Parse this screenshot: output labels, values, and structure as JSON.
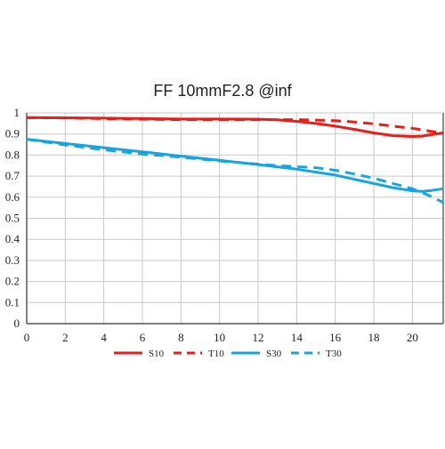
{
  "chart_data": {
    "type": "line",
    "title": "FF 10mmF2.8 @inf",
    "xlabel": "",
    "ylabel": "",
    "xlim": [
      0,
      21.6
    ],
    "ylim": [
      0,
      1
    ],
    "x_ticks": [
      0,
      2,
      4,
      6,
      8,
      10,
      12,
      14,
      16,
      18,
      20
    ],
    "x_tick_labels": [
      "0",
      "2",
      "4",
      "6",
      "8",
      "10",
      "12",
      "14",
      "16",
      "18",
      "20"
    ],
    "y_ticks": [
      0,
      0.1,
      0.2,
      0.3,
      0.4,
      0.5,
      0.6,
      0.7,
      0.8,
      0.9,
      1
    ],
    "y_tick_labels": [
      "0",
      "0.1",
      "0.2",
      "0.3",
      "0.4",
      "0.5",
      "0.6",
      "0.7",
      "0.8",
      "0.9",
      "1"
    ],
    "grid": true,
    "legend_position": "bottom",
    "series": [
      {
        "name": "S10",
        "color": "#e3201b",
        "dash": "solid",
        "x": [
          0,
          2,
          4,
          6,
          8,
          10,
          12,
          13,
          14,
          15,
          16,
          17,
          18,
          19,
          20,
          20.5,
          21,
          21.6
        ],
        "y": [
          0.978,
          0.977,
          0.975,
          0.973,
          0.971,
          0.971,
          0.97,
          0.967,
          0.96,
          0.95,
          0.937,
          0.922,
          0.905,
          0.892,
          0.888,
          0.89,
          0.897,
          0.905
        ]
      },
      {
        "name": "T10",
        "color": "#e3201b",
        "dash": "dashed",
        "x": [
          0,
          2,
          4,
          6,
          8,
          10,
          12,
          13,
          14,
          15,
          16,
          17,
          18,
          19,
          20,
          20.5,
          21,
          21.6
        ],
        "y": [
          0.978,
          0.976,
          0.973,
          0.97,
          0.968,
          0.967,
          0.968,
          0.968,
          0.968,
          0.966,
          0.963,
          0.957,
          0.948,
          0.937,
          0.927,
          0.92,
          0.912,
          0.905
        ]
      },
      {
        "name": "S30",
        "color": "#1aa4dd",
        "dash": "solid",
        "x": [
          0,
          2,
          4,
          6,
          8,
          10,
          12,
          14,
          16,
          17,
          18,
          19,
          20,
          20.5,
          21,
          21.6
        ],
        "y": [
          0.875,
          0.855,
          0.835,
          0.815,
          0.795,
          0.775,
          0.755,
          0.733,
          0.705,
          0.685,
          0.665,
          0.645,
          0.63,
          0.628,
          0.632,
          0.64
        ]
      },
      {
        "name": "T30",
        "color": "#1aa4dd",
        "dash": "dashed",
        "x": [
          0,
          2,
          4,
          6,
          8,
          10,
          12,
          13,
          14,
          15,
          16,
          17,
          18,
          19,
          20,
          20.5,
          21,
          21.6
        ],
        "y": [
          0.875,
          0.848,
          0.825,
          0.805,
          0.79,
          0.772,
          0.757,
          0.75,
          0.745,
          0.74,
          0.728,
          0.71,
          0.69,
          0.665,
          0.64,
          0.623,
          0.602,
          0.575
        ]
      }
    ]
  }
}
